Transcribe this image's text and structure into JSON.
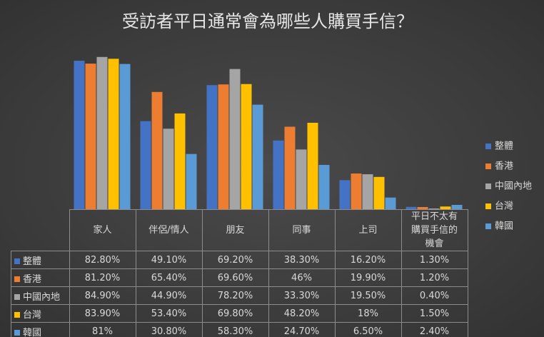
{
  "chart_data": {
    "type": "bar",
    "title": "受訪者平日通常會為哪些人購買手信？",
    "categories": [
      "家人",
      "伴侶/情人",
      "朋友",
      "同事",
      "上司",
      "平日不太有購買手信的機會"
    ],
    "ylim": [
      0,
      90
    ],
    "series": [
      {
        "name": "整體",
        "color": "#4472c4",
        "values": [
          82.8,
          49.1,
          69.2,
          38.3,
          16.2,
          1.3
        ],
        "value_labels": [
          "82.80%",
          "49.10%",
          "69.20%",
          "38.30%",
          "16.20%",
          "1.30%"
        ]
      },
      {
        "name": "香港",
        "color": "#ed7d31",
        "values": [
          81.2,
          65.4,
          69.6,
          46,
          19.9,
          1.2
        ],
        "value_labels": [
          "81.20%",
          "65.40%",
          "69.60%",
          "46%",
          "19.90%",
          "1.20%"
        ]
      },
      {
        "name": "中國內地",
        "color": "#a5a5a5",
        "values": [
          84.9,
          44.9,
          78.2,
          33.3,
          19.5,
          0.4
        ],
        "value_labels": [
          "84.90%",
          "44.90%",
          "78.20%",
          "33.30%",
          "19.50%",
          "0.40%"
        ]
      },
      {
        "name": "台灣",
        "color": "#ffc000",
        "values": [
          83.9,
          53.4,
          69.8,
          48.2,
          18,
          1.5
        ],
        "value_labels": [
          "83.90%",
          "53.40%",
          "69.80%",
          "48.20%",
          "18%",
          "1.50%"
        ]
      },
      {
        "name": "韓國",
        "color": "#5b9bd5",
        "values": [
          81,
          30.8,
          58.3,
          24.7,
          6.5,
          2.4
        ],
        "value_labels": [
          "81%",
          "30.80%",
          "58.30%",
          "24.70%",
          "6.50%",
          "2.40%"
        ]
      }
    ]
  }
}
